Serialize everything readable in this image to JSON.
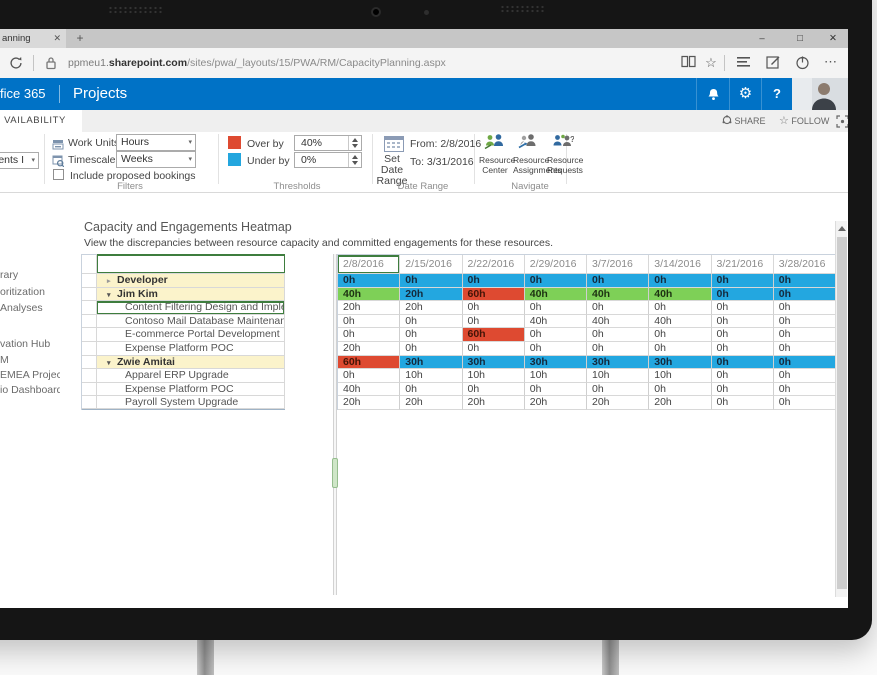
{
  "browser": {
    "tab_title": "anning",
    "new_tab_glyph": "+",
    "tab_close_glyph": "✕",
    "window_controls": {
      "minimize": "–",
      "maximize": "□",
      "close": "✕"
    },
    "url": {
      "host_prefix": "ppmeu1.",
      "host_bold": "sharepoint.com",
      "path": "/sites/pwa/_layouts/15/PWA/RM/CapacityPlanning.aspx"
    },
    "more_glyph": "⋯",
    "favorites_star_glyph": "☆"
  },
  "suite_bar": {
    "brand": "fice 365",
    "app_title": "Projects",
    "help_glyph": "?",
    "gear_glyph": "⚙",
    "accent_color": "#0072c6"
  },
  "ribbon": {
    "tab_label": "VAILABILITY",
    "engagements_dropdown_value": "gements I",
    "share_label": "SHARE",
    "follow_label": "FOLLOW",
    "follow_star_glyph": "☆",
    "filters": {
      "caption": "Filters",
      "work_units_label": "Work Units:",
      "work_units_value": "Hours",
      "timescale_label": "Timescale:",
      "timescale_value": "Weeks",
      "checkbox_label": "Include proposed bookings",
      "checkbox_checked": false
    },
    "thresholds": {
      "caption": "Thresholds",
      "over_label": "Over by",
      "over_value": "40%",
      "over_color": "#de4a31",
      "under_label": "Under by",
      "under_value": "0%",
      "under_color": "#23a6de"
    },
    "date_range": {
      "caption": "Date Range",
      "button_label": "Set Date Range",
      "from_text": "From: 2/8/2016",
      "to_text": "To: 3/31/2016"
    },
    "navigate": {
      "caption": "Navigate",
      "buttons": [
        "Resource Center",
        "Resource Assignments",
        "Resource Requests"
      ]
    },
    "combo_arrow_glyph": "▾"
  },
  "sidebar": {
    "items": [
      "rary",
      "oritization",
      "Analyses",
      "vation Hub",
      "M",
      "EMEA Project",
      "io Dashboard"
    ]
  },
  "main": {
    "title": "Capacity and Engagements Heatmap",
    "subtitle": "View the discrepancies between resource capacity and committed engagements for these resources."
  },
  "heatmap": {
    "type": "heatmap",
    "columns": [
      "2/8/2016",
      "2/15/2016",
      "2/22/2016",
      "2/29/2016",
      "3/7/2016",
      "3/14/2016",
      "3/21/2016",
      "3/28/2016"
    ],
    "selected_column_index": 0,
    "status_colors": {
      "under": "#23a7e0",
      "ok": "#7ed057",
      "over": "#de4a31",
      "group_row_bg": "#fbf3cb"
    },
    "expanded_glyph": "▾",
    "collapsed_glyph": "▸",
    "rows": [
      {
        "name": "Developer",
        "kind": "group",
        "expanded": false,
        "values": [
          [
            "0h",
            "under"
          ],
          [
            "0h",
            "under"
          ],
          [
            "0h",
            "under"
          ],
          [
            "0h",
            "under"
          ],
          [
            "0h",
            "under"
          ],
          [
            "0h",
            "under"
          ],
          [
            "0h",
            "under"
          ],
          [
            "0h",
            "under"
          ]
        ]
      },
      {
        "name": "Jim Kim",
        "kind": "group",
        "expanded": true,
        "values": [
          [
            "40h",
            "ok"
          ],
          [
            "20h",
            "under"
          ],
          [
            "60h",
            "over"
          ],
          [
            "40h",
            "ok"
          ],
          [
            "40h",
            "ok"
          ],
          [
            "40h",
            "ok"
          ],
          [
            "0h",
            "under"
          ],
          [
            "0h",
            "under"
          ]
        ]
      },
      {
        "name": "Content Filtering Design and Implementation",
        "kind": "task",
        "selected": true,
        "values": [
          [
            "20h",
            "none"
          ],
          [
            "20h",
            "none"
          ],
          [
            "0h",
            "none"
          ],
          [
            "0h",
            "none"
          ],
          [
            "0h",
            "none"
          ],
          [
            "0h",
            "none"
          ],
          [
            "0h",
            "none"
          ],
          [
            "0h",
            "none"
          ]
        ]
      },
      {
        "name": "Contoso Mail Database Maintenance",
        "kind": "task",
        "values": [
          [
            "0h",
            "none"
          ],
          [
            "0h",
            "none"
          ],
          [
            "0h",
            "none"
          ],
          [
            "40h",
            "none"
          ],
          [
            "40h",
            "none"
          ],
          [
            "40h",
            "none"
          ],
          [
            "0h",
            "none"
          ],
          [
            "0h",
            "none"
          ]
        ]
      },
      {
        "name": "E-commerce Portal Development",
        "kind": "task",
        "values": [
          [
            "0h",
            "none"
          ],
          [
            "0h",
            "none"
          ],
          [
            "60h",
            "over"
          ],
          [
            "0h",
            "none"
          ],
          [
            "0h",
            "none"
          ],
          [
            "0h",
            "none"
          ],
          [
            "0h",
            "none"
          ],
          [
            "0h",
            "none"
          ]
        ]
      },
      {
        "name": "Expense Platform POC",
        "kind": "task",
        "values": [
          [
            "20h",
            "none"
          ],
          [
            "0h",
            "none"
          ],
          [
            "0h",
            "none"
          ],
          [
            "0h",
            "none"
          ],
          [
            "0h",
            "none"
          ],
          [
            "0h",
            "none"
          ],
          [
            "0h",
            "none"
          ],
          [
            "0h",
            "none"
          ]
        ]
      },
      {
        "name": "Zwie Amitai",
        "kind": "group",
        "expanded": true,
        "values": [
          [
            "60h",
            "over"
          ],
          [
            "30h",
            "under"
          ],
          [
            "30h",
            "under"
          ],
          [
            "30h",
            "under"
          ],
          [
            "30h",
            "under"
          ],
          [
            "30h",
            "under"
          ],
          [
            "0h",
            "under"
          ],
          [
            "0h",
            "under"
          ]
        ]
      },
      {
        "name": "Apparel ERP Upgrade",
        "kind": "task",
        "values": [
          [
            "0h",
            "none"
          ],
          [
            "10h",
            "none"
          ],
          [
            "10h",
            "none"
          ],
          [
            "10h",
            "none"
          ],
          [
            "10h",
            "none"
          ],
          [
            "10h",
            "none"
          ],
          [
            "0h",
            "none"
          ],
          [
            "0h",
            "none"
          ]
        ]
      },
      {
        "name": "Expense Platform POC",
        "kind": "task",
        "values": [
          [
            "40h",
            "none"
          ],
          [
            "0h",
            "none"
          ],
          [
            "0h",
            "none"
          ],
          [
            "0h",
            "none"
          ],
          [
            "0h",
            "none"
          ],
          [
            "0h",
            "none"
          ],
          [
            "0h",
            "none"
          ],
          [
            "0h",
            "none"
          ]
        ]
      },
      {
        "name": "Payroll System Upgrade",
        "kind": "task",
        "values": [
          [
            "20h",
            "none"
          ],
          [
            "20h",
            "none"
          ],
          [
            "20h",
            "none"
          ],
          [
            "20h",
            "none"
          ],
          [
            "20h",
            "none"
          ],
          [
            "20h",
            "none"
          ],
          [
            "0h",
            "none"
          ],
          [
            "0h",
            "none"
          ]
        ]
      }
    ]
  }
}
